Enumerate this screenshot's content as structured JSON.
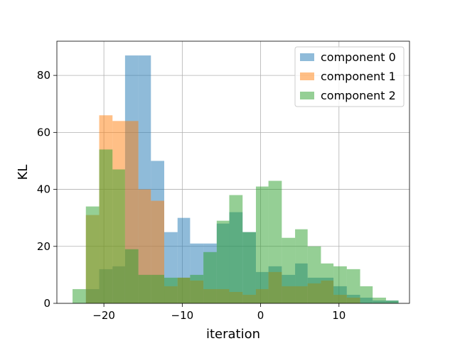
{
  "chart_data": {
    "type": "bar",
    "subtype": "overlapping-histogram",
    "title": "",
    "xlabel": "iteration",
    "ylabel": "KL",
    "xlim": [
      -26,
      19
    ],
    "ylim": [
      0,
      92
    ],
    "xticks": [
      -20,
      -10,
      0,
      10
    ],
    "xtick_labels": [
      "−20",
      "−10",
      "0",
      "10"
    ],
    "yticks": [
      0,
      20,
      40,
      60,
      80
    ],
    "ytick_labels": [
      "0",
      "20",
      "40",
      "60",
      "80"
    ],
    "grid": true,
    "legend_position": "top-right",
    "series": [
      {
        "name": "component 0",
        "color": "#1f77b4",
        "opacity": 0.5,
        "edges": [
          -22.3,
          -20.6,
          -18.9,
          -17.3,
          -15.6,
          -14.0,
          -12.3,
          -10.6,
          -9.0,
          -7.3,
          -5.6,
          -4.0,
          -2.3,
          -0.6,
          1.0,
          2.7,
          4.4,
          6.0,
          7.7,
          9.3,
          11.0,
          12.7,
          14.3,
          16.0,
          17.6
        ],
        "values": [
          5,
          12,
          13,
          87,
          87,
          50,
          25,
          30,
          21,
          21,
          28,
          32,
          25,
          11,
          13,
          10,
          14,
          9,
          9,
          6,
          3,
          2,
          1,
          1
        ]
      },
      {
        "name": "component 1",
        "color": "#ff7f0e",
        "opacity": 0.5,
        "edges": [
          -22.3,
          -20.6,
          -18.9,
          -17.3,
          -15.6,
          -14.0,
          -12.3,
          -10.6,
          -9.0,
          -7.3,
          -5.6,
          -4.0,
          -2.3,
          -0.6,
          1.0,
          2.7,
          4.4,
          6.0,
          7.7,
          9.3,
          11.0,
          12.7
        ],
        "values": [
          31,
          66,
          64,
          64,
          40,
          36,
          6,
          9,
          8,
          5,
          5,
          4,
          3,
          5,
          11,
          6,
          6,
          7,
          8,
          3,
          2
        ]
      },
      {
        "name": "component 2",
        "color": "#2ca02c",
        "opacity": 0.5,
        "edges": [
          -24.0,
          -22.3,
          -20.6,
          -18.9,
          -17.3,
          -15.6,
          -14.0,
          -12.3,
          -10.6,
          -9.0,
          -7.3,
          -5.6,
          -4.0,
          -2.3,
          -0.6,
          1.0,
          2.7,
          4.4,
          6.0,
          7.7,
          9.3,
          11.0,
          12.7,
          14.3,
          16.0,
          17.6
        ],
        "values": [
          5,
          34,
          54,
          47,
          19,
          10,
          10,
          9,
          9,
          10,
          18,
          29,
          38,
          25,
          41,
          43,
          23,
          26,
          20,
          14,
          13,
          12,
          6,
          2,
          1
        ]
      }
    ]
  }
}
